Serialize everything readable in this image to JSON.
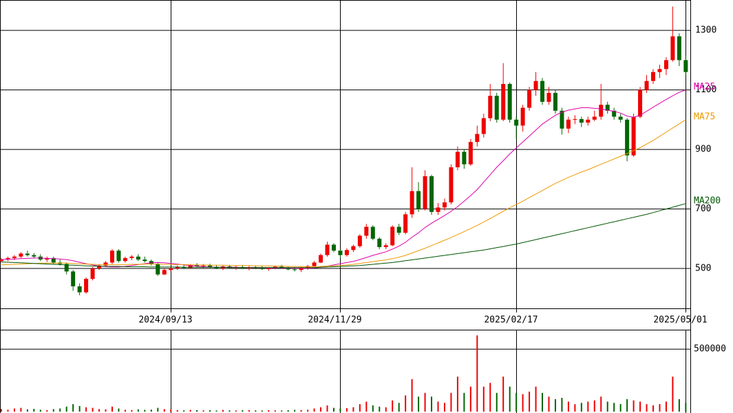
{
  "chart_data": {
    "type": "candlestick",
    "categories": [
      null,
      null,
      null,
      null,
      null,
      null,
      null,
      null,
      null,
      null,
      null,
      null,
      null,
      null,
      null,
      null,
      null,
      null,
      null,
      null,
      null,
      null,
      null,
      null,
      null,
      null,
      "2024/09/13",
      null,
      null,
      null,
      null,
      null,
      null,
      null,
      null,
      null,
      null,
      null,
      null,
      null,
      null,
      null,
      null,
      null,
      null,
      null,
      null,
      null,
      null,
      null,
      null,
      null,
      "2024/11/29",
      null,
      null,
      null,
      null,
      null,
      null,
      null,
      null,
      null,
      null,
      null,
      null,
      null,
      null,
      null,
      null,
      null,
      null,
      null,
      null,
      null,
      null,
      null,
      null,
      null,
      null,
      "2025/02/17",
      null,
      null,
      null,
      null,
      null,
      null,
      null,
      null,
      null,
      null,
      null,
      null,
      null,
      null,
      null,
      null,
      null,
      null,
      null,
      null,
      null,
      null,
      null,
      null,
      null,
      "2025/05/01"
    ],
    "ohlc": [
      [
        525,
        535,
        520,
        530
      ],
      [
        530,
        540,
        525,
        535
      ],
      [
        535,
        545,
        528,
        540
      ],
      [
        540,
        555,
        535,
        550
      ],
      [
        550,
        560,
        540,
        545
      ],
      [
        545,
        552,
        535,
        540
      ],
      [
        540,
        548,
        525,
        530
      ],
      [
        530,
        540,
        522,
        535
      ],
      [
        535,
        540,
        515,
        520
      ],
      [
        520,
        530,
        510,
        515
      ],
      [
        515,
        520,
        480,
        490
      ],
      [
        490,
        495,
        425,
        440
      ],
      [
        440,
        450,
        410,
        420
      ],
      [
        420,
        470,
        415,
        465
      ],
      [
        465,
        505,
        460,
        500
      ],
      [
        500,
        515,
        495,
        510
      ],
      [
        510,
        525,
        505,
        520
      ],
      [
        520,
        565,
        515,
        560
      ],
      [
        560,
        565,
        520,
        525
      ],
      [
        525,
        540,
        520,
        535
      ],
      [
        535,
        545,
        528,
        540
      ],
      [
        540,
        548,
        525,
        530
      ],
      [
        530,
        540,
        520,
        525
      ],
      [
        525,
        530,
        510,
        515
      ],
      [
        515,
        520,
        475,
        480
      ],
      [
        480,
        500,
        478,
        495
      ],
      [
        495,
        505,
        490,
        500
      ],
      [
        500,
        510,
        495,
        505
      ],
      [
        505,
        512,
        498,
        502
      ],
      [
        502,
        515,
        500,
        512
      ],
      [
        512,
        518,
        505,
        508
      ],
      [
        508,
        515,
        500,
        510
      ],
      [
        510,
        516,
        502,
        505
      ],
      [
        505,
        512,
        498,
        500
      ],
      [
        500,
        510,
        495,
        507
      ],
      [
        507,
        512,
        500,
        503
      ],
      [
        503,
        510,
        496,
        505
      ],
      [
        505,
        512,
        498,
        500
      ],
      [
        500,
        508,
        494,
        504
      ],
      [
        504,
        510,
        498,
        502
      ],
      [
        502,
        508,
        495,
        498
      ],
      [
        498,
        505,
        492,
        503
      ],
      [
        503,
        510,
        498,
        506
      ],
      [
        506,
        512,
        500,
        502
      ],
      [
        502,
        508,
        494,
        497
      ],
      [
        497,
        505,
        490,
        495
      ],
      [
        495,
        505,
        488,
        500
      ],
      [
        500,
        512,
        496,
        508
      ],
      [
        508,
        525,
        505,
        520
      ],
      [
        520,
        550,
        518,
        545
      ],
      [
        545,
        590,
        540,
        580
      ],
      [
        580,
        585,
        555,
        560
      ],
      [
        560,
        565,
        535,
        545
      ],
      [
        545,
        568,
        540,
        562
      ],
      [
        562,
        580,
        555,
        575
      ],
      [
        575,
        615,
        570,
        610
      ],
      [
        610,
        650,
        600,
        640
      ],
      [
        640,
        645,
        595,
        600
      ],
      [
        600,
        605,
        565,
        572
      ],
      [
        572,
        585,
        565,
        578
      ],
      [
        578,
        645,
        575,
        640
      ],
      [
        640,
        650,
        612,
        620
      ],
      [
        620,
        690,
        615,
        682
      ],
      [
        682,
        840,
        670,
        760
      ],
      [
        760,
        790,
        690,
        700
      ],
      [
        700,
        830,
        695,
        810
      ],
      [
        810,
        815,
        680,
        690
      ],
      [
        690,
        720,
        680,
        705
      ],
      [
        705,
        735,
        695,
        722
      ],
      [
        722,
        850,
        715,
        840
      ],
      [
        840,
        910,
        830,
        892
      ],
      [
        892,
        900,
        835,
        850
      ],
      [
        850,
        935,
        845,
        925
      ],
      [
        925,
        980,
        910,
        952
      ],
      [
        952,
        1020,
        940,
        1005
      ],
      [
        1005,
        1120,
        995,
        1080
      ],
      [
        1080,
        1090,
        990,
        1000
      ],
      [
        1000,
        1190,
        995,
        1120
      ],
      [
        1120,
        1125,
        990,
        1000
      ],
      [
        1000,
        1010,
        935,
        980
      ],
      [
        980,
        1050,
        960,
        1040
      ],
      [
        1040,
        1110,
        1030,
        1100
      ],
      [
        1100,
        1160,
        1080,
        1130
      ],
      [
        1130,
        1140,
        1050,
        1060
      ],
      [
        1060,
        1110,
        1050,
        1090
      ],
      [
        1090,
        1100,
        1020,
        1030
      ],
      [
        1030,
        1040,
        950,
        970
      ],
      [
        970,
        1010,
        955,
        1000
      ],
      [
        1000,
        1015,
        985,
        1002
      ],
      [
        1002,
        1010,
        975,
        990
      ],
      [
        990,
        1010,
        980,
        1000
      ],
      [
        1000,
        1030,
        995,
        1010
      ],
      [
        1010,
        1120,
        1000,
        1050
      ],
      [
        1050,
        1060,
        1020,
        1030
      ],
      [
        1030,
        1040,
        1000,
        1010
      ],
      [
        1010,
        1020,
        990,
        1000
      ],
      [
        1000,
        1005,
        860,
        880
      ],
      [
        880,
        1020,
        875,
        1010
      ],
      [
        1010,
        1110,
        1005,
        1100
      ],
      [
        1100,
        1150,
        1090,
        1130
      ],
      [
        1130,
        1170,
        1120,
        1160
      ],
      [
        1160,
        1185,
        1140,
        1170
      ],
      [
        1170,
        1210,
        1150,
        1200
      ],
      [
        1200,
        1380,
        1195,
        1280
      ],
      [
        1280,
        1290,
        1180,
        1200
      ],
      [
        1200,
        1215,
        1150,
        1160
      ]
    ],
    "up_color": "#ee0000",
    "down_color": "#006600",
    "series": [
      {
        "name": "MA25",
        "color": "#dd00aa",
        "values": [
          530,
          531,
          532,
          533,
          534,
          535,
          535,
          534,
          533,
          532,
          530,
          526,
          521,
          516,
          512,
          508,
          506,
          505,
          505,
          507,
          510,
          513,
          516,
          519,
          520,
          519,
          517,
          515,
          512,
          510,
          508,
          506,
          505,
          504,
          504,
          504,
          504,
          503,
          503,
          503,
          503,
          502,
          502,
          502,
          502,
          501,
          501,
          501,
          502,
          504,
          508,
          512,
          516,
          520,
          524,
          530,
          537,
          544,
          550,
          556,
          565,
          575,
          588,
          605,
          620,
          638,
          652,
          665,
          678,
          692,
          708,
          726,
          745,
          765,
          790,
          815,
          840,
          862,
          885,
          905,
          925,
          945,
          965,
          985,
          1000,
          1015,
          1025,
          1032,
          1036,
          1040,
          1040,
          1038,
          1036,
          1032,
          1028,
          1022,
          1012,
          1008,
          1015,
          1028,
          1042,
          1055,
          1068,
          1080,
          1092,
          1100
        ]
      },
      {
        "name": "MA75",
        "color": "#ee9900",
        "values": [
          512,
          513,
          514,
          515,
          516,
          517,
          518,
          518,
          518,
          518,
          518,
          517,
          516,
          515,
          514,
          513,
          513,
          513,
          513,
          513,
          514,
          514,
          515,
          515,
          515,
          514,
          514,
          513,
          513,
          512,
          512,
          512,
          511,
          511,
          511,
          510,
          510,
          510,
          510,
          509,
          509,
          509,
          508,
          508,
          507,
          507,
          506,
          506,
          506,
          507,
          508,
          509,
          510,
          512,
          514,
          517,
          520,
          523,
          526,
          529,
          533,
          538,
          544,
          552,
          560,
          568,
          577,
          586,
          595,
          604,
          614,
          624,
          634,
          645,
          656,
          668,
          680,
          692,
          704,
          715,
          726,
          738,
          750,
          762,
          774,
          786,
          796,
          806,
          815,
          824,
          832,
          841,
          850,
          859,
          868,
          877,
          886,
          896,
          906,
          918,
          930,
          944,
          958,
          972,
          986,
          1000
        ]
      },
      {
        "name": "MA200",
        "color": "#005500",
        "values": [
          522,
          521,
          520,
          519,
          518,
          517,
          516,
          515,
          514,
          513,
          512,
          511,
          510,
          509,
          508,
          508,
          507,
          507,
          507,
          506,
          506,
          506,
          506,
          505,
          505,
          505,
          505,
          505,
          504,
          504,
          504,
          504,
          504,
          504,
          504,
          503,
          503,
          503,
          503,
          503,
          503,
          503,
          503,
          503,
          503,
          503,
          503,
          503,
          503,
          504,
          505,
          506,
          507,
          508,
          509,
          510,
          512,
          514,
          516,
          518,
          520,
          523,
          526,
          529,
          532,
          535,
          538,
          541,
          544,
          547,
          550,
          553,
          556,
          559,
          562,
          566,
          570,
          574,
          578,
          582,
          587,
          592,
          597,
          602,
          607,
          612,
          617,
          622,
          627,
          632,
          637,
          642,
          647,
          652,
          657,
          662,
          667,
          672,
          677,
          682,
          688,
          694,
          700,
          706,
          712,
          718
        ]
      }
    ],
    "ylim": [
      366,
      1402
    ],
    "yticks": [
      500,
      700,
      900,
      1100,
      1300
    ],
    "grid": true,
    "volume": {
      "values": [
        20000,
        15000,
        25000,
        30000,
        18000,
        22000,
        15000,
        12000,
        20000,
        25000,
        40000,
        60000,
        45000,
        35000,
        30000,
        20000,
        18000,
        40000,
        25000,
        15000,
        12000,
        18000,
        14000,
        16000,
        30000,
        20000,
        15000,
        12000,
        10000,
        14000,
        12000,
        10000,
        11000,
        9000,
        13000,
        10000,
        9000,
        11000,
        12000,
        10000,
        9000,
        12000,
        10000,
        9000,
        11000,
        14000,
        12000,
        15000,
        25000,
        35000,
        50000,
        30000,
        25000,
        28000,
        35000,
        60000,
        80000,
        50000,
        40000,
        35000,
        90000,
        70000,
        130000,
        260000,
        120000,
        150000,
        120000,
        80000,
        70000,
        150000,
        280000,
        150000,
        200000,
        610000,
        200000,
        230000,
        150000,
        280000,
        200000,
        150000,
        140000,
        160000,
        200000,
        150000,
        120000,
        100000,
        110000,
        80000,
        60000,
        70000,
        80000,
        90000,
        120000,
        80000,
        70000,
        60000,
        100000,
        90000,
        80000,
        60000,
        50000,
        60000,
        80000,
        280000,
        100000,
        70000
      ],
      "ylim": [
        0,
        650000
      ],
      "yticks": [
        500000
      ]
    }
  }
}
